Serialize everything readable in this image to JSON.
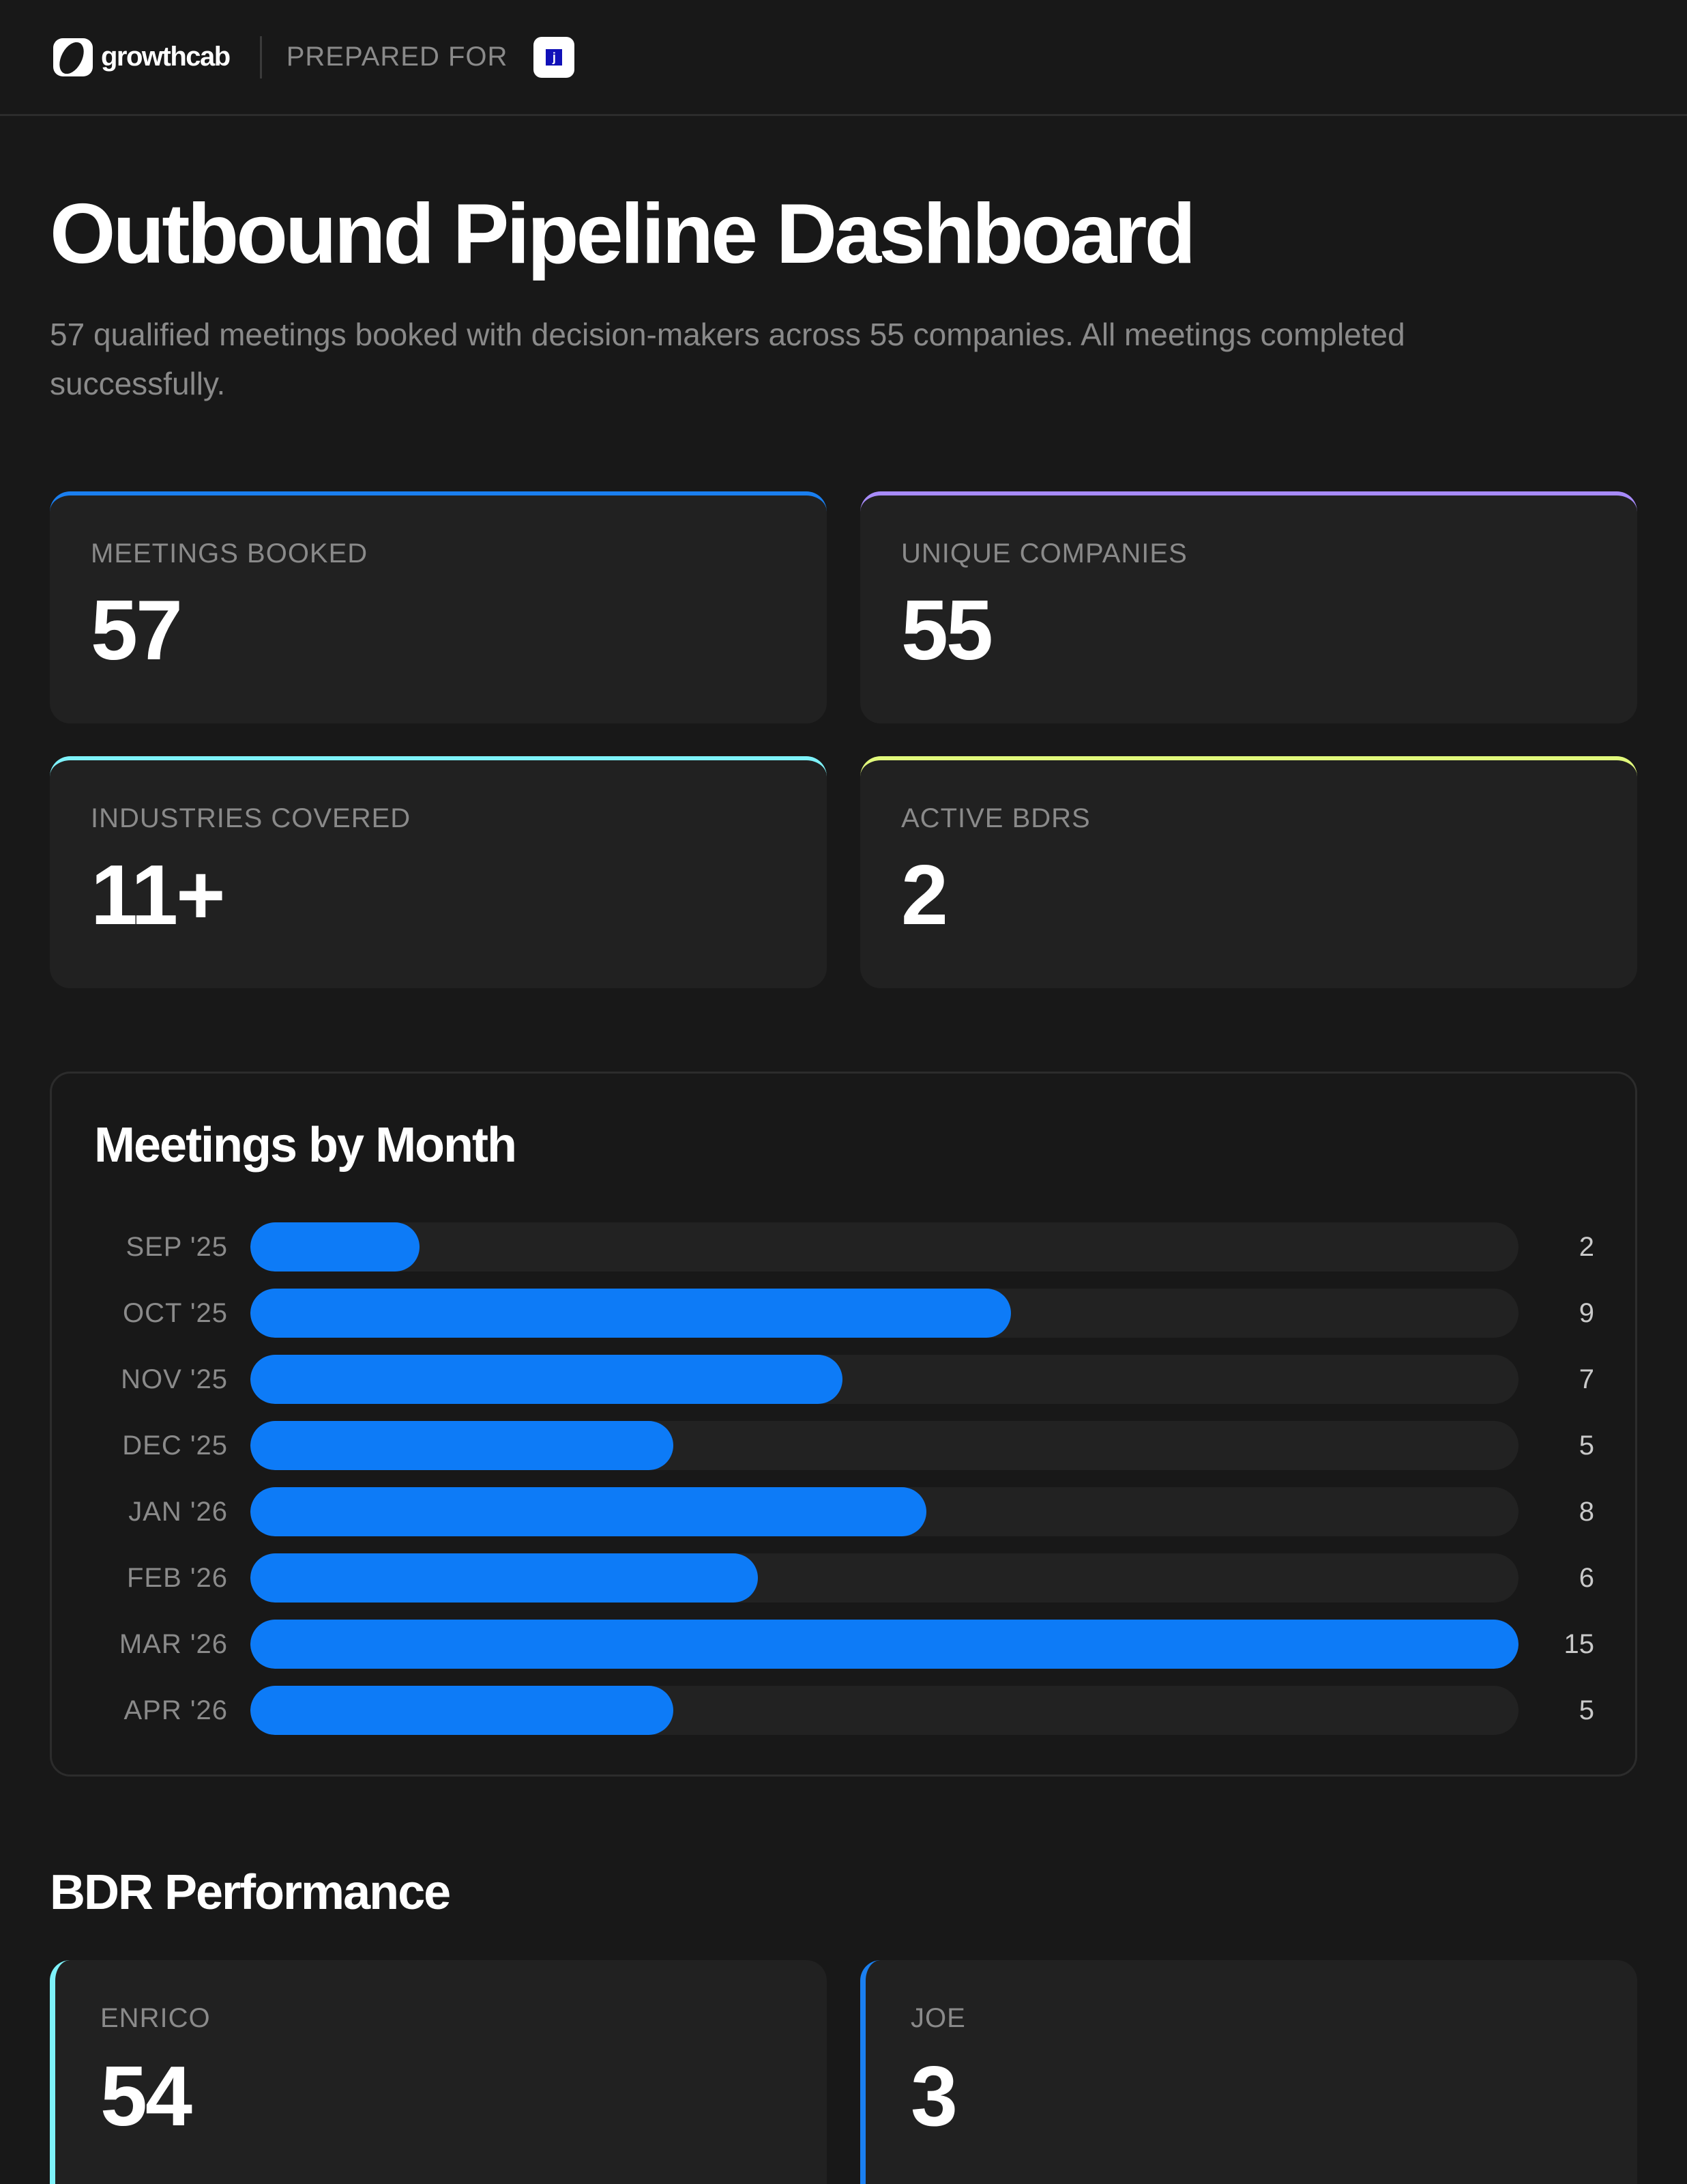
{
  "header": {
    "brand_name": "growthcab",
    "prepared_for_label": "PREPARED FOR",
    "client_logo_glyph": "j"
  },
  "page": {
    "title": "Outbound Pipeline Dashboard",
    "subtitle": "57 qualified meetings booked with decision-makers across 55 companies. All meetings completed successfully."
  },
  "stats": [
    {
      "label": "MEETINGS BOOKED",
      "value": "57",
      "accent": "#1a7ff0"
    },
    {
      "label": "UNIQUE COMPANIES",
      "value": "55",
      "accent": "#a78bfa"
    },
    {
      "label": "INDUSTRIES COVERED",
      "value": "11+",
      "accent": "#7ef2fa"
    },
    {
      "label": "ACTIVE BDRS",
      "value": "2",
      "accent": "#e1f97c"
    }
  ],
  "chart": {
    "title": "Meetings by Month",
    "bar_color": "#0d7bf7",
    "track_color": "#222222",
    "rows": [
      {
        "label": "SEP '25",
        "value": "2"
      },
      {
        "label": "OCT '25",
        "value": "9"
      },
      {
        "label": "NOV '25",
        "value": "7"
      },
      {
        "label": "DEC '25",
        "value": "5"
      },
      {
        "label": "JAN '26",
        "value": "8"
      },
      {
        "label": "FEB '26",
        "value": "6"
      },
      {
        "label": "MAR '26",
        "value": "15"
      },
      {
        "label": "APR '26",
        "value": "5"
      }
    ]
  },
  "chart_data": {
    "type": "bar",
    "orientation": "horizontal",
    "title": "Meetings by Month",
    "categories": [
      "SEP '25",
      "OCT '25",
      "NOV '25",
      "DEC '25",
      "JAN '26",
      "FEB '26",
      "MAR '26",
      "APR '26"
    ],
    "values": [
      2,
      9,
      7,
      5,
      8,
      6,
      15,
      5
    ],
    "xlabel": "",
    "ylabel": "",
    "xlim": [
      0,
      15
    ],
    "grid": false,
    "legend": null
  },
  "bdr": {
    "title": "BDR Performance",
    "cards": [
      {
        "name": "ENRICO",
        "value": "54",
        "accent": "#7ef2fa"
      },
      {
        "name": "JOE",
        "value": "3",
        "accent": "#1a7ff0"
      }
    ]
  }
}
